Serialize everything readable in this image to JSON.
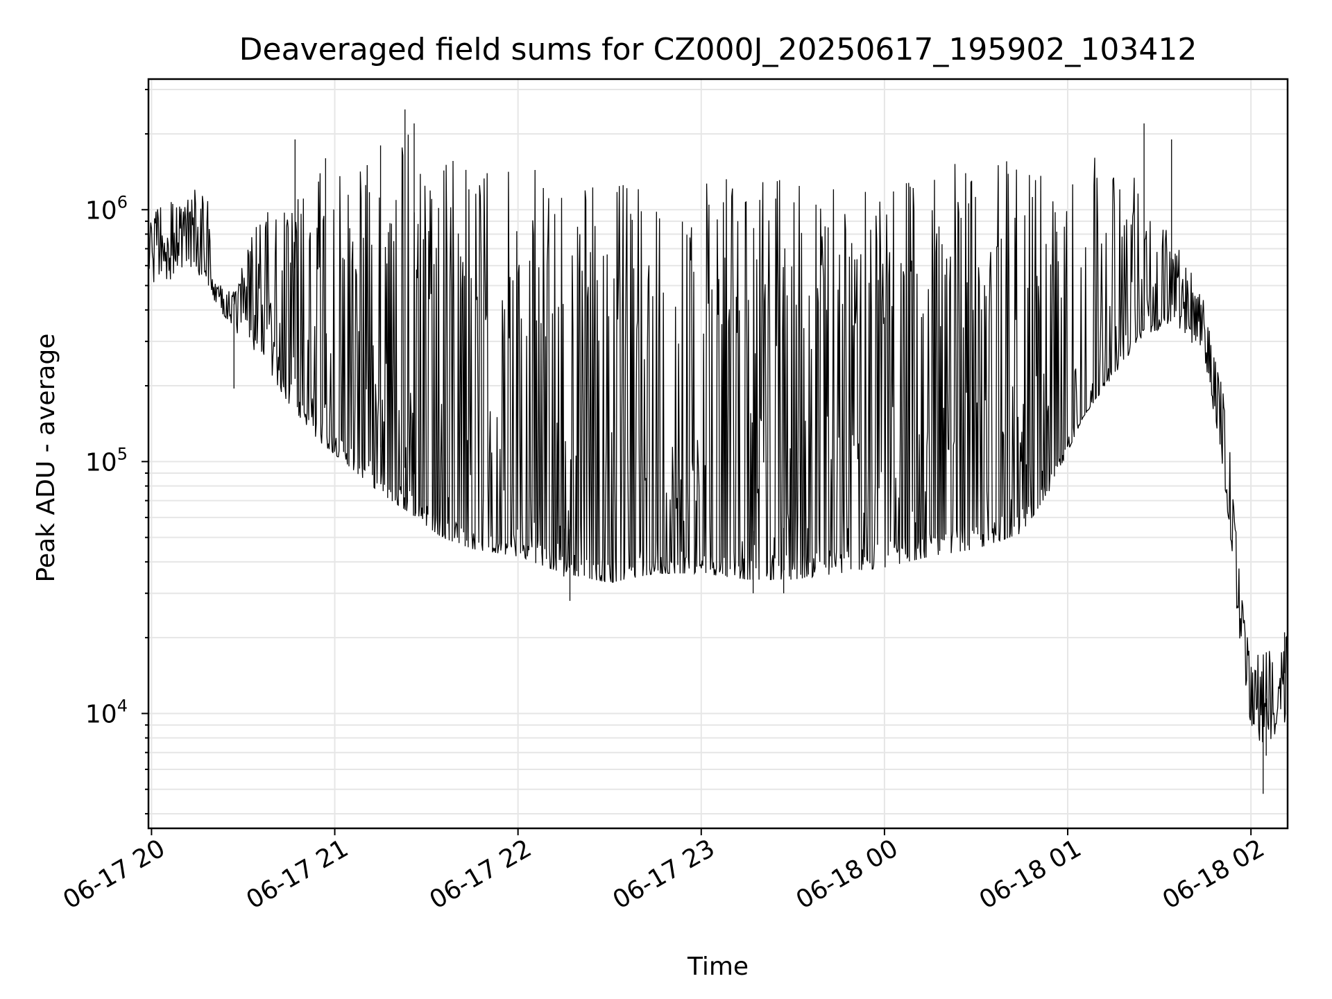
{
  "chart_data": {
    "type": "line",
    "title": "Deaveraged field sums for CZ000J_20250617_195902_103412",
    "xlabel": "Time",
    "ylabel": "Peak ADU - average",
    "yscale": "log",
    "grid": true,
    "xlim": [
      "2025-06-17 19:59:00",
      "2025-06-18 02:12:00"
    ],
    "ylim": [
      3500,
      3300000
    ],
    "xticks": [
      {
        "time": "2025-06-17 20:00",
        "label": "06-17 20"
      },
      {
        "time": "2025-06-17 21:00",
        "label": "06-17 21"
      },
      {
        "time": "2025-06-17 22:00",
        "label": "06-17 22"
      },
      {
        "time": "2025-06-17 23:00",
        "label": "06-17 23"
      },
      {
        "time": "2025-06-18 00:00",
        "label": "06-18 00"
      },
      {
        "time": "2025-06-18 01:00",
        "label": "06-18 01"
      },
      {
        "time": "2025-06-18 02:00",
        "label": "06-18 02"
      }
    ],
    "yticks": [
      {
        "value": 10000,
        "base": "10",
        "exp": "4"
      },
      {
        "value": 100000,
        "base": "10",
        "exp": "5"
      },
      {
        "value": 1000000,
        "base": "10",
        "exp": "6"
      }
    ],
    "series": [
      {
        "color": "#000000",
        "points": [
          [
            "2025-06-17 19:59",
            700000
          ],
          [
            "2025-06-17 20:03",
            800000
          ],
          [
            "2025-06-17 20:08",
            820000
          ],
          [
            "2025-06-17 20:13",
            760000
          ],
          [
            "2025-06-17 20:18",
            620000
          ],
          [
            "2025-06-17 20:20",
            470000
          ],
          [
            "2025-06-17 20:25",
            420000
          ],
          [
            "2025-06-17 20:30",
            430000
          ],
          [
            "2025-06-17 20:35",
            390000
          ],
          [
            "2025-06-17 20:40",
            300000
          ],
          [
            "2025-06-17 20:45",
            230000
          ],
          [
            "2025-06-17 20:50",
            190000
          ],
          [
            "2025-06-17 21:00",
            160000
          ],
          [
            "2025-06-17 21:10",
            130000
          ],
          [
            "2025-06-17 21:20",
            100000
          ],
          [
            "2025-06-17 21:35",
            75000
          ],
          [
            "2025-06-17 21:50",
            60000
          ],
          [
            "2025-06-17 22:10",
            55000
          ],
          [
            "2025-06-17 22:30",
            52000
          ],
          [
            "2025-06-17 22:50",
            50000
          ],
          [
            "2025-06-17 23:10",
            52000
          ],
          [
            "2025-06-17 23:30",
            55000
          ],
          [
            "2025-06-17 23:50",
            58000
          ],
          [
            "2025-06-18 00:10",
            62000
          ],
          [
            "2025-06-18 00:30",
            68000
          ],
          [
            "2025-06-18 00:50",
            85000
          ],
          [
            "2025-06-18 01:05",
            150000
          ],
          [
            "2025-06-18 01:15",
            280000
          ],
          [
            "2025-06-18 01:25",
            380000
          ],
          [
            "2025-06-18 01:35",
            480000
          ],
          [
            "2025-06-18 01:45",
            330000
          ],
          [
            "2025-06-18 01:50",
            150000
          ],
          [
            "2025-06-18 01:55",
            40000
          ],
          [
            "2025-06-18 01:58",
            18000
          ],
          [
            "2025-06-18 02:02",
            10000
          ],
          [
            "2025-06-18 02:06",
            12000
          ],
          [
            "2025-06-18 02:12",
            15000
          ]
        ],
        "envelope": [
          [
            "2025-06-17 19:59",
            480000,
            1050000
          ],
          [
            "2025-06-17 20:05",
            520000,
            1080000
          ],
          [
            "2025-06-17 20:12",
            560000,
            1150000
          ],
          [
            "2025-06-17 20:18",
            520000,
            1300000
          ],
          [
            "2025-06-17 20:20",
            420000,
            520000
          ],
          [
            "2025-06-17 20:27",
            330000,
            480000
          ],
          [
            "2025-06-17 20:35",
            260000,
            950000
          ],
          [
            "2025-06-17 20:45",
            170000,
            1050000
          ],
          [
            "2025-06-17 20:55",
            120000,
            1400000
          ],
          [
            "2025-06-17 21:05",
            95000,
            1700000
          ],
          [
            "2025-06-17 21:15",
            75000,
            1800000
          ],
          [
            "2025-06-17 21:25",
            62000,
            2100000
          ],
          [
            "2025-06-17 21:35",
            50000,
            1700000
          ],
          [
            "2025-06-17 21:45",
            45000,
            1500000
          ],
          [
            "2025-06-17 22:00",
            42000,
            1500000
          ],
          [
            "2025-06-17 22:15",
            36000,
            1350000
          ],
          [
            "2025-06-17 22:30",
            33000,
            1300000
          ],
          [
            "2025-06-17 22:45",
            36000,
            1250000
          ],
          [
            "2025-06-17 23:00",
            36000,
            1300000
          ],
          [
            "2025-06-17 23:15",
            34000,
            1350000
          ],
          [
            "2025-06-17 23:30",
            34000,
            1300000
          ],
          [
            "2025-06-17 23:45",
            36000,
            1400000
          ],
          [
            "2025-06-18 00:00",
            38000,
            1450000
          ],
          [
            "2025-06-18 00:15",
            42000,
            1500000
          ],
          [
            "2025-06-18 00:30",
            45000,
            1550000
          ],
          [
            "2025-06-18 00:45",
            52000,
            1600000
          ],
          [
            "2025-06-18 00:55",
            80000,
            1600000
          ],
          [
            "2025-06-18 01:05",
            150000,
            1700000
          ],
          [
            "2025-06-18 01:15",
            220000,
            1900000
          ],
          [
            "2025-06-18 01:25",
            320000,
            1300000
          ],
          [
            "2025-06-18 01:35",
            350000,
            800000
          ],
          [
            "2025-06-18 01:45",
            250000,
            450000
          ],
          [
            "2025-06-18 01:52",
            70000,
            160000
          ],
          [
            "2025-06-18 01:57",
            16000,
            30000
          ],
          [
            "2025-06-18 02:00",
            8000,
            17000
          ],
          [
            "2025-06-18 02:05",
            7500,
            18000
          ],
          [
            "2025-06-18 02:12",
            9500,
            21000
          ]
        ],
        "spikes": [
          [
            "2025-06-17 20:27",
            195000
          ],
          [
            "2025-06-17 20:47",
            1900000
          ],
          [
            "2025-06-17 20:57",
            1600000
          ],
          [
            "2025-06-17 21:15",
            1800000
          ],
          [
            "2025-06-17 21:23",
            2500000
          ],
          [
            "2025-06-17 21:26",
            2200000
          ],
          [
            "2025-06-17 22:15",
            35000
          ],
          [
            "2025-06-17 22:17",
            28000
          ],
          [
            "2025-06-17 23:17",
            30000
          ],
          [
            "2025-06-17 23:27",
            30000
          ],
          [
            "2025-06-18 01:25",
            2200000
          ],
          [
            "2025-06-18 01:34",
            1900000
          ],
          [
            "2025-06-18 02:04",
            4800
          ],
          [
            "2025-06-18 02:05",
            6800
          ],
          [
            "2025-06-18 02:11",
            21000
          ]
        ]
      }
    ]
  }
}
